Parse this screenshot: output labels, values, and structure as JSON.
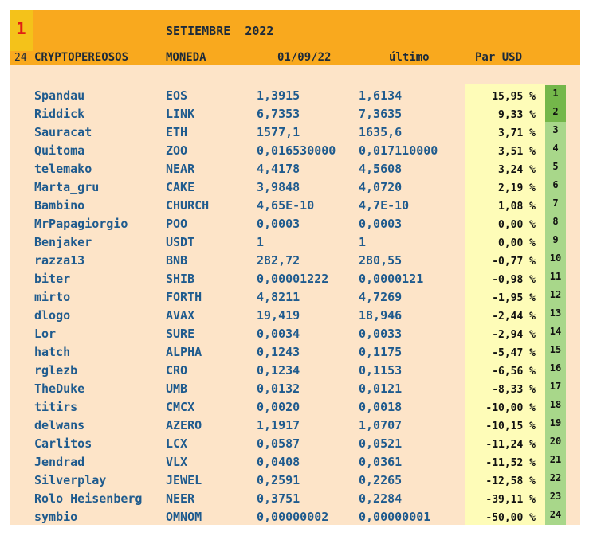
{
  "header": {
    "rank": "1",
    "month": "SETIEMBRE  2022",
    "count": "24",
    "col_player": "CRYPTOPEREOSOS",
    "col_coin": "MONEDA",
    "col_date": "01/09/22",
    "col_last": "último",
    "col_pair": "Par USD"
  },
  "colors": {
    "header_bg": "#f9a91e",
    "rank_box": "#f4c21a",
    "sheet_bg": "#fde4c8",
    "pct_strip": "#fefcb8",
    "pos_dark": "#74b74a",
    "pos_light": "#a8d78a"
  },
  "rows": [
    {
      "name": "Spandau",
      "coin": "EOS",
      "start": "1,3915",
      "last": "1,6134",
      "pct": "15,95 %",
      "pos": "1"
    },
    {
      "name": "Riddick",
      "coin": "LINK",
      "start": "6,7353",
      "last": "7,3635",
      "pct": "9,33 %",
      "pos": "2"
    },
    {
      "name": "Sauracat",
      "coin": "ETH",
      "start": "1577,1",
      "last": "1635,6",
      "pct": "3,71 %",
      "pos": "3"
    },
    {
      "name": "Quitoma",
      "coin": "ZOO",
      "start": "0,016530000",
      "last": "0,017110000",
      "pct": "3,51 %",
      "pos": "4"
    },
    {
      "name": "telemako",
      "coin": "NEAR",
      "start": "4,4178",
      "last": "4,5608",
      "pct": "3,24 %",
      "pos": "5"
    },
    {
      "name": "Marta_gru",
      "coin": "CAKE",
      "start": "3,9848",
      "last": "4,0720",
      "pct": "2,19 %",
      "pos": "6"
    },
    {
      "name": "Bambino",
      "coin": "CHURCH",
      "start": "4,65E-10",
      "last": "4,7E-10",
      "pct": "1,08 %",
      "pos": "7"
    },
    {
      "name": "MrPapagiorgio",
      "coin": "POO",
      "start": "0,0003",
      "last": "0,0003",
      "pct": "0,00 %",
      "pos": "8"
    },
    {
      "name": "Benjaker",
      "coin": "USDT",
      "start": "1",
      "last": "1",
      "pct": "0,00 %",
      "pos": "9"
    },
    {
      "name": "razza13",
      "coin": "BNB",
      "start": "282,72",
      "last": "280,55",
      "pct": "-0,77 %",
      "pos": "10"
    },
    {
      "name": "biter",
      "coin": "SHIB",
      "start": "0,00001222",
      "last": "0,0000121",
      "pct": "-0,98 %",
      "pos": "11"
    },
    {
      "name": "mirto",
      "coin": "FORTH",
      "start": "4,8211",
      "last": "4,7269",
      "pct": "-1,95 %",
      "pos": "12"
    },
    {
      "name": "dlogo",
      "coin": "AVAX",
      "start": "19,419",
      "last": "18,946",
      "pct": "-2,44 %",
      "pos": "13"
    },
    {
      "name": "Lor",
      "coin": "SURE",
      "start": "0,0034",
      "last": "0,0033",
      "pct": "-2,94 %",
      "pos": "14"
    },
    {
      "name": "hatch",
      "coin": "ALPHA",
      "start": "0,1243",
      "last": "0,1175",
      "pct": "-5,47 %",
      "pos": "15"
    },
    {
      "name": "rglezb",
      "coin": "CRO",
      "start": "0,1234",
      "last": "0,1153",
      "pct": "-6,56 %",
      "pos": "16"
    },
    {
      "name": "TheDuke",
      "coin": "UMB",
      "start": "0,0132",
      "last": "0,0121",
      "pct": "-8,33 %",
      "pos": "17"
    },
    {
      "name": "titirs",
      "coin": "CMCX",
      "start": "0,0020",
      "last": "0,0018",
      "pct": "-10,00 %",
      "pos": "18"
    },
    {
      "name": "delwans",
      "coin": "AZERO",
      "start": "1,1917",
      "last": "1,0707",
      "pct": "-10,15 %",
      "pos": "19"
    },
    {
      "name": "Carlitos",
      "coin": "LCX",
      "start": "0,0587",
      "last": "0,0521",
      "pct": "-11,24 %",
      "pos": "20"
    },
    {
      "name": "Jendrad",
      "coin": "VLX",
      "start": "0,0408",
      "last": "0,0361",
      "pct": "-11,52 %",
      "pos": "21"
    },
    {
      "name": "Silverplay",
      "coin": "JEWEL",
      "start": "0,2591",
      "last": "0,2265",
      "pct": "-12,58 %",
      "pos": "22"
    },
    {
      "name": "Rolo Heisenberg",
      "coin": "NEER",
      "start": "0,3751",
      "last": "0,2284",
      "pct": "-39,11 %",
      "pos": "23"
    },
    {
      "name": "symbio",
      "coin": "OMNOM",
      "start": "0,00000002",
      "last": "0,00000001",
      "pct": "-50,00 %",
      "pos": "24"
    }
  ]
}
